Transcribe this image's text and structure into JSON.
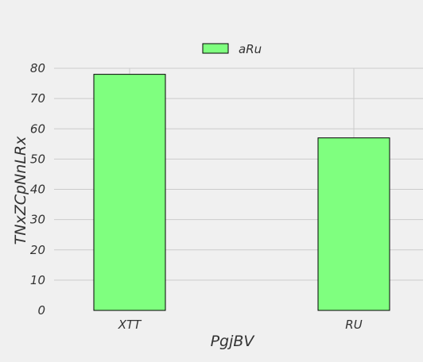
{
  "chart_data": {
    "type": "bar",
    "categories": [
      "XTT",
      "RU"
    ],
    "series": [
      {
        "name": "aRu",
        "values": [
          78,
          57
        ]
      }
    ],
    "xlabel": "PgjBV",
    "ylabel": "TNxZCpNnLRx",
    "ylim": [
      0,
      80
    ],
    "yticks": [
      0,
      10,
      20,
      30,
      40,
      50,
      60,
      70,
      80
    ],
    "grid": true,
    "legend": "top-center",
    "colors": {
      "bar_fill": "#7fff7f",
      "bar_stroke": "#000000",
      "grid": "#cbcbcb",
      "background": "#f0f0f0"
    }
  }
}
